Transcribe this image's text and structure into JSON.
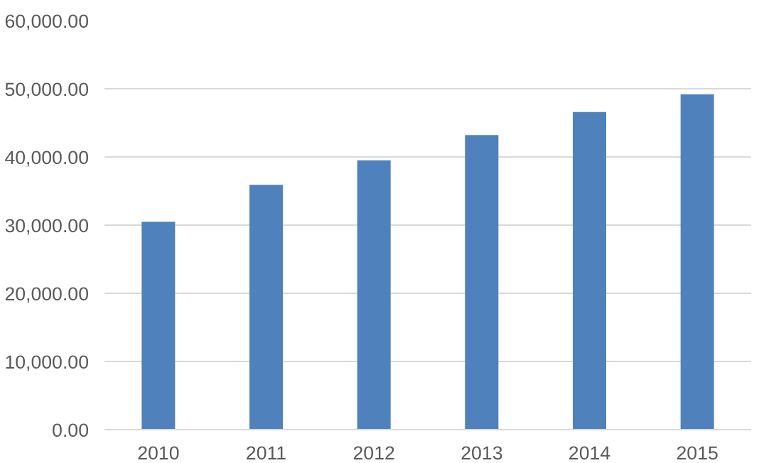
{
  "chart_data": {
    "type": "bar",
    "categories": [
      "2010",
      "2011",
      "2012",
      "2013",
      "2014",
      "2015"
    ],
    "values": [
      30500,
      35900,
      39500,
      43200,
      46600,
      49200
    ],
    "color": "#4f81bd",
    "ylim": [
      0,
      60000
    ],
    "yticks": [
      {
        "value": 0,
        "label": "0.00"
      },
      {
        "value": 10000,
        "label": "10,000.00"
      },
      {
        "value": 20000,
        "label": "20,000.00"
      },
      {
        "value": 30000,
        "label": "30,000.00"
      },
      {
        "value": 40000,
        "label": "40,000.00"
      },
      {
        "value": 50000,
        "label": "50,000.00"
      },
      {
        "value": 60000,
        "label": "60,000.00"
      }
    ],
    "grid": "y"
  }
}
